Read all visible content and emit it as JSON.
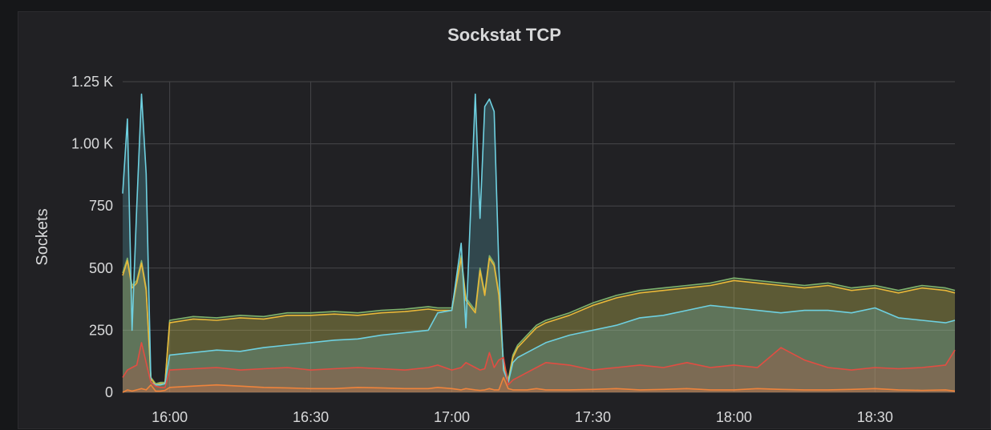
{
  "panel": {
    "title": "Sockstat TCP"
  },
  "chart_data": {
    "type": "area",
    "title": "Sockstat TCP",
    "xlabel": "",
    "ylabel": "Sockets",
    "x_unit": "time of day",
    "xlim": [
      "15:50",
      "18:47"
    ],
    "ylim": [
      0,
      1250
    ],
    "grid": true,
    "legend": "none",
    "x_tick_labels": [
      "16:00",
      "16:30",
      "17:00",
      "17:30",
      "18:00",
      "18:30"
    ],
    "y_tick_labels": [
      "0",
      "250",
      "500",
      "750",
      "1.00 K",
      "1.25 K"
    ],
    "y_tick_values": [
      0,
      250,
      500,
      750,
      1000,
      1250
    ],
    "x": [
      "15:50",
      "15:51",
      "15:52",
      "15:53",
      "15:54",
      "15:55",
      "15:56",
      "15:57",
      "15:58",
      "15:59",
      "16:00",
      "16:05",
      "16:10",
      "16:15",
      "16:20",
      "16:25",
      "16:30",
      "16:35",
      "16:40",
      "16:45",
      "16:50",
      "16:55",
      "16:57",
      "17:00",
      "17:02",
      "17:03",
      "17:05",
      "17:06",
      "17:07",
      "17:08",
      "17:09",
      "17:10",
      "17:11",
      "17:12",
      "17:13",
      "17:14",
      "17:16",
      "17:18",
      "17:20",
      "17:25",
      "17:30",
      "17:35",
      "17:40",
      "17:45",
      "17:50",
      "17:55",
      "18:00",
      "18:05",
      "18:10",
      "18:15",
      "18:20",
      "18:25",
      "18:30",
      "18:35",
      "18:40",
      "18:45",
      "18:47"
    ],
    "series": [
      {
        "color": "#7eb26d",
        "values": [
          480,
          540,
          430,
          450,
          530,
          420,
          60,
          35,
          40,
          40,
          290,
          305,
          300,
          310,
          305,
          320,
          320,
          325,
          320,
          330,
          335,
          345,
          340,
          340,
          550,
          380,
          330,
          500,
          400,
          550,
          520,
          400,
          120,
          50,
          150,
          190,
          230,
          270,
          290,
          320,
          360,
          390,
          410,
          420,
          430,
          440,
          460,
          450,
          440,
          430,
          440,
          420,
          430,
          410,
          430,
          420,
          410
        ]
      },
      {
        "color": "#eab839",
        "values": [
          470,
          530,
          420,
          440,
          520,
          410,
          55,
          30,
          35,
          35,
          280,
          295,
          290,
          300,
          295,
          310,
          310,
          315,
          310,
          320,
          325,
          335,
          330,
          330,
          540,
          370,
          320,
          490,
          390,
          540,
          510,
          390,
          110,
          45,
          140,
          180,
          220,
          260,
          280,
          310,
          350,
          380,
          400,
          410,
          420,
          430,
          450,
          440,
          430,
          420,
          430,
          410,
          420,
          400,
          420,
          410,
          400
        ]
      },
      {
        "color": "#6ed0e0",
        "values": [
          800,
          1100,
          250,
          750,
          1200,
          880,
          40,
          30,
          30,
          35,
          150,
          160,
          170,
          165,
          180,
          190,
          200,
          210,
          215,
          230,
          240,
          250,
          320,
          330,
          600,
          260,
          1200,
          700,
          1150,
          1180,
          1130,
          500,
          90,
          40,
          120,
          140,
          160,
          180,
          200,
          230,
          250,
          270,
          300,
          310,
          330,
          350,
          340,
          330,
          320,
          330,
          330,
          320,
          340,
          300,
          290,
          280,
          290
        ]
      },
      {
        "color": "#ef843c",
        "values": [
          0,
          10,
          5,
          10,
          15,
          10,
          30,
          5,
          5,
          8,
          20,
          25,
          30,
          25,
          20,
          18,
          15,
          15,
          20,
          18,
          15,
          15,
          20,
          15,
          10,
          15,
          10,
          8,
          10,
          15,
          10,
          10,
          60,
          15,
          10,
          10,
          10,
          15,
          10,
          10,
          12,
          15,
          10,
          12,
          15,
          10,
          10,
          15,
          12,
          10,
          10,
          12,
          15,
          10,
          8,
          10,
          5
        ]
      },
      {
        "color": "#e24d42",
        "values": [
          60,
          90,
          100,
          110,
          200,
          120,
          40,
          25,
          20,
          20,
          90,
          95,
          100,
          90,
          95,
          100,
          90,
          95,
          100,
          95,
          90,
          100,
          110,
          90,
          100,
          120,
          100,
          90,
          95,
          160,
          100,
          130,
          140,
          30,
          50,
          60,
          80,
          100,
          120,
          110,
          90,
          100,
          110,
          100,
          120,
          100,
          110,
          100,
          180,
          130,
          100,
          90,
          100,
          95,
          100,
          110,
          170
        ]
      }
    ]
  }
}
